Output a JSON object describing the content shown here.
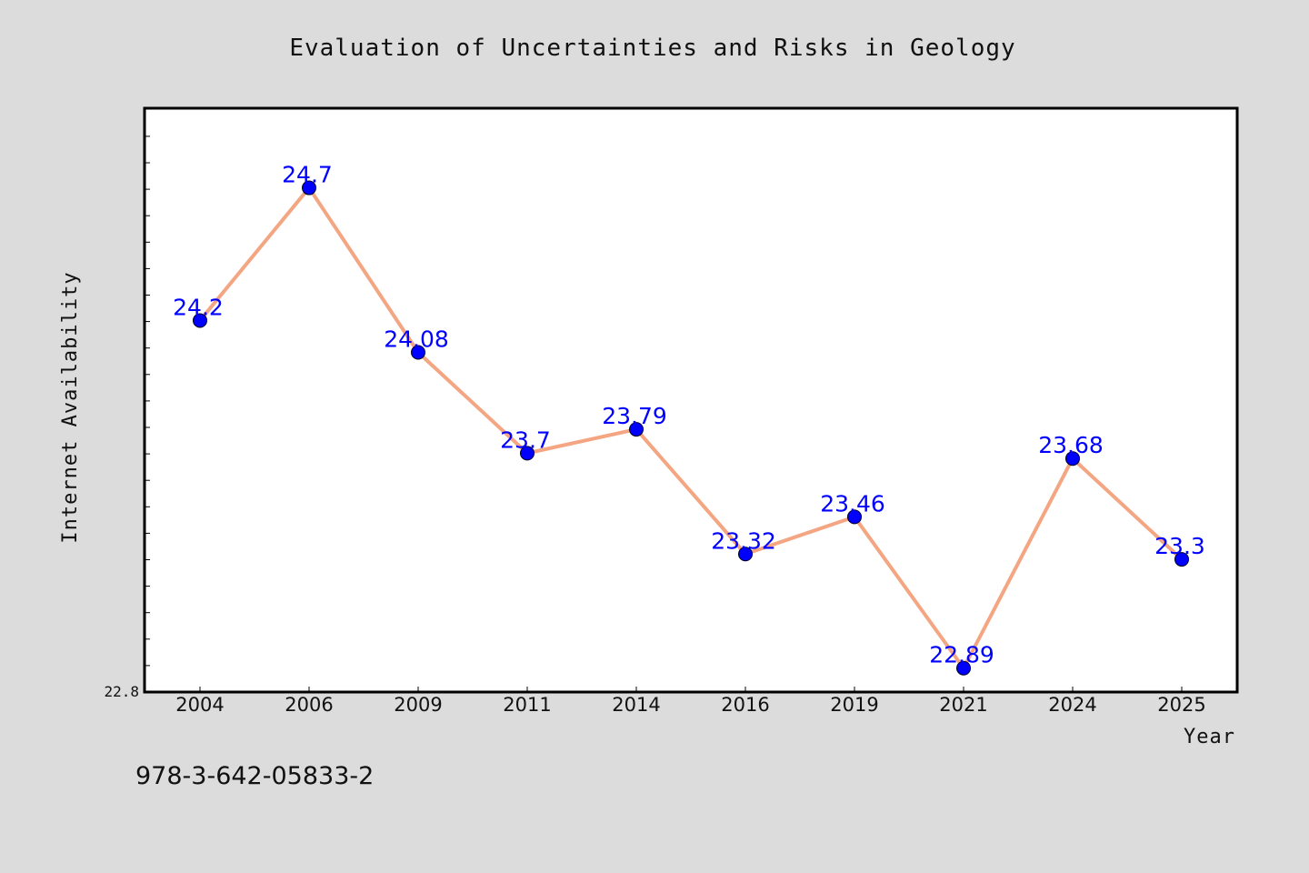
{
  "isbn": "978-3-642-05833-2",
  "colors": {
    "background": "#dcdcdc",
    "plot_background": "#ffffff",
    "line": "#f4a582",
    "marker": "#0000ff",
    "data_label": "#0000ff",
    "frame": "#000000"
  },
  "chart_data": {
    "type": "line",
    "title": "Evaluation of Uncertainties and Risks in Geology",
    "xlabel": "Year",
    "ylabel": "Internet Availability",
    "categories": [
      "2004",
      "2006",
      "2009",
      "2011",
      "2014",
      "2016",
      "2019",
      "2021",
      "2024",
      "2025"
    ],
    "series": [
      {
        "values": [
          24.2,
          24.7,
          24.08,
          23.7,
          23.79,
          23.32,
          23.46,
          22.89,
          23.68,
          23.3
        ],
        "labels": [
          "24.2",
          "24.7",
          "24.08",
          "23.7",
          "23.79",
          "23.32",
          "23.46",
          "22.89",
          "23.68",
          "23.3"
        ]
      }
    ],
    "ylim": [
      22.8,
      25.0
    ],
    "y_tick_labels": [
      "22.8"
    ],
    "grid": false,
    "legend": "none"
  }
}
